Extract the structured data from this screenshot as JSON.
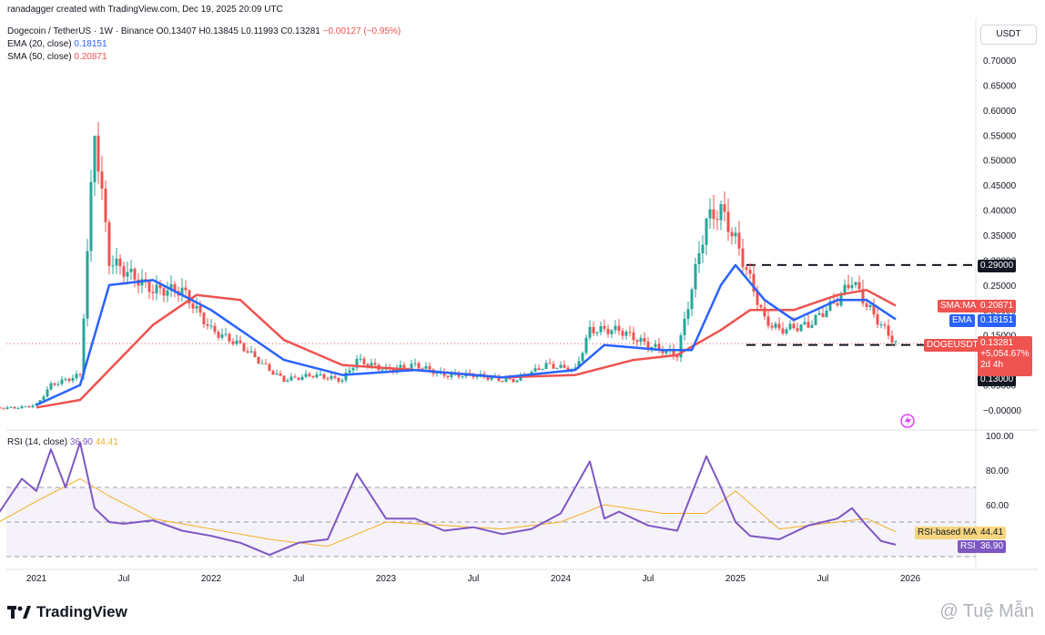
{
  "header": {
    "author_line": "ranadagger created with TradingView.com, Dec 19, 2025 20:09 UTC",
    "symbol": "Dogecoin / TetherUS · 1W · Binance",
    "o_label": "O",
    "o_value": "0.13407",
    "h_label": "H",
    "h_value": "0.13845",
    "l_label": "L",
    "l_value": "0.11993",
    "c_label": "C",
    "c_value": "0.13281",
    "change": "−0.00127 (−0.95%)",
    "ema_label": "EMA (20, close)",
    "ema_value": "0.18151",
    "sma_label": "SMA (50, close)",
    "sma_value": "0.20871"
  },
  "currency_button": "USDT",
  "price_axis": {
    "ticks": [
      "0.70000",
      "0.65000",
      "0.60000",
      "0.55000",
      "0.50000",
      "0.45000",
      "0.40000",
      "0.35000",
      "0.30000",
      "0.25000",
      "0.20000",
      "0.15000",
      "0.10000",
      "0.05000",
      "−0.00000"
    ],
    "ticks_values": [
      0.7,
      0.65,
      0.6,
      0.55,
      0.5,
      0.45,
      0.4,
      0.35,
      0.3,
      0.25,
      0.2,
      0.15,
      0.1,
      0.05,
      0.0
    ]
  },
  "labels": {
    "level_high": "0.29000",
    "level_low": "0.13000",
    "sma_tag": "SMA:MA",
    "sma_tag_value": "0.20871",
    "ema_tag": "EMA",
    "ema_tag_value": "0.18151",
    "sym_tag": "DOGEUSDT",
    "sym_price": "0.13281",
    "sym_change": "+5,054.67%",
    "sym_time": "2d 4h"
  },
  "rsi_panel": {
    "label": "RSI (14, close)",
    "rsi_value": "36.90",
    "rsi_ma_value": "44.41",
    "ticks": [
      "100.00",
      "80.00",
      "60.00"
    ],
    "ticks_values": [
      100,
      80,
      60
    ],
    "ma_tag": "RSI-based MA",
    "ma_tag_value": "44.41",
    "rsi_tag": "RSI",
    "rsi_tag_value": "36.90",
    "bands": [
      70,
      50,
      30
    ]
  },
  "time_axis": [
    "2021",
    "Jul",
    "2022",
    "Jul",
    "2023",
    "Jul",
    "2024",
    "Jul",
    "2025",
    "Jul",
    "2026"
  ],
  "branding": {
    "logo_text": "TradingView",
    "watermark": "@ Tuệ Mẫn"
  },
  "colors": {
    "up": "#26a69a",
    "down": "#ef5350",
    "ema": "#2962ff",
    "sma": "#ef5350",
    "rsi": "#7e57c2",
    "rsi_ma": "#f2b024",
    "level": "#131722"
  },
  "chart_data": [
    {
      "type": "line",
      "title": "Dogecoin / TetherUS · 1W · Binance",
      "ylim": [
        0,
        0.72
      ],
      "series": [
        {
          "name": "DOGEUSDT",
          "x": [
            "2020-10",
            "2020-12",
            "2021-01",
            "2021-02",
            "2021-04",
            "2021-05",
            "2021-06",
            "2021-08",
            "2021-09",
            "2021-11",
            "2022-01",
            "2022-03",
            "2022-05",
            "2022-06",
            "2022-08",
            "2022-10",
            "2022-11",
            "2023-01",
            "2023-03",
            "2023-05",
            "2023-07",
            "2023-09",
            "2023-10",
            "2023-12",
            "2024-02",
            "2024-03",
            "2024-05",
            "2024-07",
            "2024-09",
            "2024-11",
            "2024-12",
            "2025-01",
            "2025-03",
            "2025-04",
            "2025-06",
            "2025-08",
            "2025-09",
            "2025-10",
            "2025-11",
            "2025-12"
          ],
          "values": [
            0.003,
            0.005,
            0.01,
            0.05,
            0.07,
            0.56,
            0.3,
            0.26,
            0.24,
            0.24,
            0.16,
            0.13,
            0.08,
            0.06,
            0.07,
            0.06,
            0.1,
            0.08,
            0.09,
            0.07,
            0.07,
            0.06,
            0.06,
            0.09,
            0.08,
            0.16,
            0.16,
            0.13,
            0.11,
            0.38,
            0.4,
            0.34,
            0.18,
            0.16,
            0.17,
            0.22,
            0.26,
            0.21,
            0.17,
            0.133
          ]
        },
        {
          "name": "EMA",
          "x": [
            "2021-01",
            "2021-04",
            "2021-06",
            "2021-09",
            "2022-01",
            "2022-06",
            "2022-10",
            "2023-03",
            "2023-09",
            "2024-02",
            "2024-04",
            "2024-08",
            "2024-10",
            "2024-12",
            "2025-01",
            "2025-03",
            "2025-05",
            "2025-08",
            "2025-10",
            "2025-12"
          ],
          "values": [
            0.01,
            0.05,
            0.25,
            0.26,
            0.2,
            0.1,
            0.07,
            0.08,
            0.065,
            0.08,
            0.13,
            0.12,
            0.12,
            0.25,
            0.29,
            0.22,
            0.18,
            0.22,
            0.22,
            0.18151
          ]
        },
        {
          "name": "SMA",
          "x": [
            "2021-01",
            "2021-04",
            "2021-06",
            "2021-09",
            "2021-12",
            "2022-03",
            "2022-06",
            "2022-10",
            "2023-03",
            "2023-09",
            "2024-02",
            "2024-06",
            "2024-09",
            "2024-12",
            "2025-02",
            "2025-05",
            "2025-08",
            "2025-10",
            "2025-12"
          ],
          "values": [
            0.005,
            0.02,
            0.08,
            0.17,
            0.23,
            0.22,
            0.14,
            0.09,
            0.08,
            0.065,
            0.07,
            0.1,
            0.11,
            0.16,
            0.2,
            0.2,
            0.23,
            0.24,
            0.20871
          ]
        }
      ],
      "levels": [
        0.29,
        0.13
      ]
    },
    {
      "type": "line",
      "title": "RSI (14, close)",
      "ylim": [
        20,
        100
      ],
      "series": [
        {
          "name": "RSI",
          "x": [
            "2020-10",
            "2020-12",
            "2021-01",
            "2021-02",
            "2021-03",
            "2021-04",
            "2021-05",
            "2021-06",
            "2021-07",
            "2021-09",
            "2021-11",
            "2022-01",
            "2022-03",
            "2022-05",
            "2022-07",
            "2022-09",
            "2022-11",
            "2023-01",
            "2023-03",
            "2023-05",
            "2023-07",
            "2023-09",
            "2023-11",
            "2024-01",
            "2024-03",
            "2024-04",
            "2024-05",
            "2024-07",
            "2024-09",
            "2024-11",
            "2024-12",
            "2025-01",
            "2025-02",
            "2025-04",
            "2025-06",
            "2025-08",
            "2025-09",
            "2025-10",
            "2025-11",
            "2025-12"
          ],
          "values": [
            50,
            75,
            68,
            92,
            70,
            96,
            58,
            50,
            49,
            51,
            45,
            42,
            38,
            31,
            38,
            40,
            78,
            52,
            52,
            45,
            47,
            43,
            46,
            55,
            85,
            52,
            56,
            48,
            45,
            88,
            70,
            50,
            42,
            40,
            48,
            52,
            58,
            48,
            39,
            36.9
          ]
        },
        {
          "name": "RSI-based MA",
          "x": [
            "2020-10",
            "2021-01",
            "2021-04",
            "2021-06",
            "2021-09",
            "2022-01",
            "2022-05",
            "2022-09",
            "2023-01",
            "2023-05",
            "2023-09",
            "2024-01",
            "2024-04",
            "2024-08",
            "2024-11",
            "2025-01",
            "2025-04",
            "2025-08",
            "2025-10",
            "2025-12"
          ],
          "values": [
            48,
            62,
            75,
            65,
            52,
            46,
            40,
            36,
            50,
            48,
            46,
            50,
            60,
            55,
            55,
            68,
            46,
            50,
            52,
            44.41
          ]
        }
      ],
      "bands": [
        70,
        50,
        30
      ]
    }
  ]
}
